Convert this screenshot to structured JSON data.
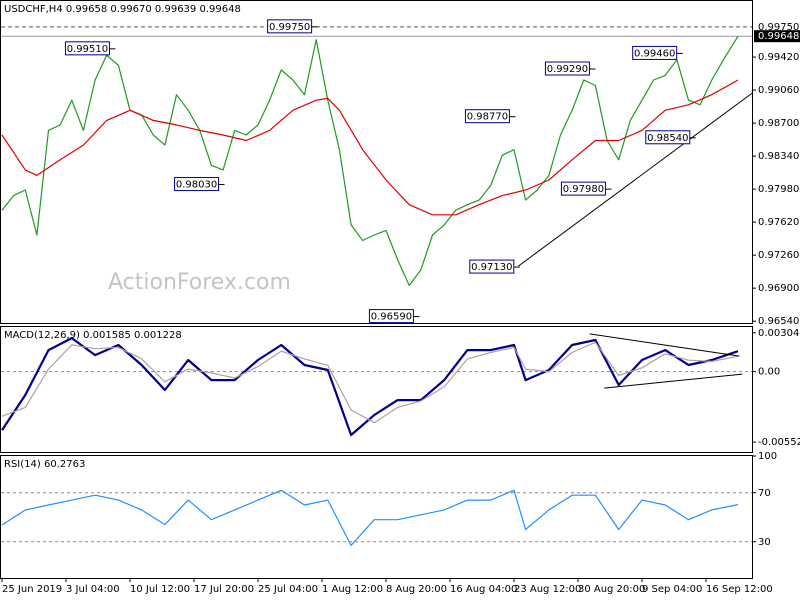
{
  "chart_data": [
    {
      "type": "line",
      "title": "USDCHF,H4 0.99658 0.99670 0.99639 0.99648",
      "watermark": "ActionForex.com",
      "xlim": [
        0,
        516
      ],
      "ylim": [
        0.9652,
        1.0001
      ],
      "yticks": [
        {
          "value": 0.9942,
          "label": "0.99420"
        },
        {
          "value": 0.9906,
          "label": "0.99060"
        },
        {
          "value": 0.987,
          "label": "0.98700"
        },
        {
          "value": 0.9834,
          "label": "0.98340"
        },
        {
          "value": 0.9798,
          "label": "0.97980"
        },
        {
          "value": 0.9762,
          "label": "0.97620"
        },
        {
          "value": 0.9726,
          "label": "0.97260"
        },
        {
          "value": 0.969,
          "label": "0.96900"
        },
        {
          "value": 0.9654,
          "label": "0.96540"
        }
      ],
      "level_line": {
        "value": 0.9975,
        "label": "0.99750"
      },
      "price_line": {
        "value": 0.99648,
        "label": "0.99648"
      },
      "series": [
        {
          "color": "#1f9a1f",
          "x": [
            0,
            8,
            16,
            24,
            32,
            40,
            48,
            56,
            64,
            72,
            80,
            88,
            96,
            104,
            112,
            120,
            128,
            136,
            144,
            152,
            160,
            168,
            176,
            184,
            192,
            200,
            208,
            216,
            224,
            232,
            240,
            248,
            256,
            264,
            272,
            280,
            288,
            296,
            304,
            312,
            320,
            328,
            336,
            344,
            352,
            360,
            368,
            376,
            384,
            392,
            400,
            408,
            416,
            424,
            432,
            440,
            448,
            456,
            464,
            472,
            480,
            488,
            496,
            506
          ],
          "values": [
            0.9775,
            0.9791,
            0.9797,
            0.9748,
            0.9862,
            0.9868,
            0.9895,
            0.9862,
            0.9917,
            0.9944,
            0.9933,
            0.9884,
            0.9879,
            0.9857,
            0.9846,
            0.9901,
            0.9884,
            0.9862,
            0.9824,
            0.9819,
            0.9862,
            0.9857,
            0.9868,
            0.9895,
            0.9928,
            0.9917,
            0.9901,
            0.9961,
            0.9895,
            0.9841,
            0.9759,
            0.9742,
            0.9748,
            0.9753,
            0.9721,
            0.9693,
            0.971,
            0.9748,
            0.9759,
            0.9775,
            0.9781,
            0.9786,
            0.9802,
            0.9835,
            0.9841,
            0.9786,
            0.9797,
            0.9813,
            0.9857,
            0.9884,
            0.9917,
            0.9911,
            0.9851,
            0.983,
            0.9873,
            0.9895,
            0.9917,
            0.9922,
            0.9939,
            0.9895,
            0.989,
            0.9917,
            0.9939,
            0.99648
          ]
        },
        {
          "color": "#e00000",
          "x": [
            0,
            16,
            24,
            40,
            56,
            72,
            88,
            104,
            120,
            136,
            152,
            168,
            184,
            200,
            216,
            224,
            232,
            248,
            264,
            280,
            296,
            312,
            328,
            344,
            360,
            376,
            392,
            408,
            424,
            440,
            456,
            472,
            488,
            506
          ],
          "values": [
            0.9857,
            0.9819,
            0.9813,
            0.983,
            0.9846,
            0.9873,
            0.9884,
            0.9873,
            0.9868,
            0.9862,
            0.9857,
            0.9851,
            0.9862,
            0.9884,
            0.9895,
            0.9897,
            0.9884,
            0.9841,
            0.9808,
            0.9781,
            0.977,
            0.977,
            0.9781,
            0.9791,
            0.9797,
            0.9808,
            0.983,
            0.9851,
            0.9851,
            0.9862,
            0.9884,
            0.989,
            0.9901,
            0.9917
          ]
        }
      ],
      "annotations": [
        {
          "x": 217,
          "value": 0.9975,
          "label": "0.99750"
        },
        {
          "x": 78,
          "value": 0.9951,
          "label": "0.99510"
        },
        {
          "x": 408,
          "value": 0.9929,
          "label": "0.99290"
        },
        {
          "x": 468,
          "value": 0.9946,
          "label": "0.99460"
        },
        {
          "x": 353,
          "value": 0.9877,
          "label": "0.98770"
        },
        {
          "x": 477,
          "value": 0.9854,
          "label": "0.98540"
        },
        {
          "x": 153,
          "value": 0.9803,
          "label": "0.98030"
        },
        {
          "x": 419,
          "value": 0.9798,
          "label": "0.97980"
        },
        {
          "x": 356,
          "value": 0.9713,
          "label": "0.97130"
        },
        {
          "x": 287,
          "value": 0.9659,
          "label": "0.96590"
        }
      ],
      "trendlines": [
        {
          "x": [
            355,
            516
          ],
          "y": [
            0.9714,
            0.9903
          ]
        }
      ]
    },
    {
      "type": "line",
      "title": "MACD(12,26,9) 0.001585 0.001228",
      "xlim": [
        0,
        516
      ],
      "ylim": [
        -0.0063,
        0.0035
      ],
      "yticks": [
        0.003044,
        {
          "value": 0,
          "label": "0.00"
        },
        -0.005524
      ],
      "levels": [
        0
      ],
      "x": [
        0,
        16,
        32,
        48,
        64,
        80,
        96,
        112,
        128,
        144,
        160,
        176,
        192,
        208,
        224,
        240,
        256,
        272,
        288,
        304,
        320,
        336,
        352,
        360,
        376,
        392,
        408,
        424,
        440,
        456,
        472,
        488,
        506
      ],
      "series": [
        {
          "color": "#00008b",
          "values": [
            -0.00458,
            -0.00183,
            0.00169,
            0.00263,
            0.0013,
            0.00209,
            0.00052,
            -0.00144,
            0.00091,
            -0.00066,
            -0.00066,
            0.00091,
            0.00209,
            0.00052,
            0.00013,
            -0.00497,
            -0.0034,
            -0.00223,
            -0.00223,
            -0.00066,
            0.00169,
            0.00169,
            0.00209,
            -0.00066,
            0.00013,
            0.00209,
            0.00248,
            -0.00105,
            0.00091,
            0.00169,
            0.00052,
            0.00091,
            0.0016
          ]
        },
        {
          "color": "#b0a0a0",
          "values": [
            -0.0035,
            -0.0028,
            0.0002,
            0.0021,
            0.0018,
            0.0019,
            0.001,
            -0.0008,
            0.0002,
            -0.0001,
            -0.0005,
            0.0004,
            0.0016,
            0.001,
            0.0005,
            -0.003,
            -0.004,
            -0.0028,
            -0.0023,
            -0.0012,
            0.001,
            0.0015,
            0.0019,
            0.0002,
            0,
            0.0015,
            0.0023,
            -0.0003,
            0.0003,
            0.0014,
            0.0009,
            0.0008,
            0.0012
          ]
        }
      ],
      "trendlines": [
        {
          "x": [
            404,
            507
          ],
          "y": [
            0.00296,
            0.00122
          ]
        },
        {
          "x": [
            414,
            509
          ],
          "y": [
            -0.00129,
            -0.00019
          ]
        }
      ]
    },
    {
      "type": "line",
      "title": "RSI(14) 60.2763",
      "xlim": [
        0,
        516
      ],
      "ylim": [
        0,
        100
      ],
      "yticks": [
        100,
        70,
        30
      ],
      "levels": [
        70,
        30
      ],
      "x": [
        0,
        16,
        32,
        48,
        64,
        80,
        96,
        112,
        128,
        144,
        160,
        176,
        192,
        208,
        224,
        240,
        256,
        272,
        288,
        304,
        320,
        336,
        352,
        360,
        376,
        392,
        408,
        424,
        440,
        456,
        472,
        488,
        506
      ],
      "series": [
        {
          "color": "#1e90ff",
          "values": [
            43.7,
            55.9,
            60,
            64,
            68,
            64,
            56,
            44,
            64,
            48,
            56,
            64,
            72,
            60,
            64,
            27,
            48,
            48,
            52,
            56,
            64,
            64,
            72,
            40,
            56,
            68,
            68,
            40,
            64,
            60,
            48,
            56,
            60.3
          ]
        }
      ],
      "xticks": [
        {
          "value": 0,
          "label": "25 Jun 2019"
        },
        {
          "value": 44,
          "label": "3 Jul 04:00"
        },
        {
          "value": 88,
          "label": "10 Jul 12:00"
        },
        {
          "value": 132,
          "label": "17 Jul 20:00"
        },
        {
          "value": 176,
          "label": "25 Jul 04:00"
        },
        {
          "value": 220,
          "label": "1 Aug 12:00"
        },
        {
          "value": 264,
          "label": "8 Aug 20:00"
        },
        {
          "value": 308,
          "label": "16 Aug 04:00"
        },
        {
          "value": 352,
          "label": "23 Aug 12:00"
        },
        {
          "value": 396,
          "label": "30 Aug 20:00"
        },
        {
          "value": 440,
          "label": "9 Sep 04:00"
        },
        {
          "value": 484,
          "label": "16 Sep 12:00"
        }
      ]
    }
  ]
}
